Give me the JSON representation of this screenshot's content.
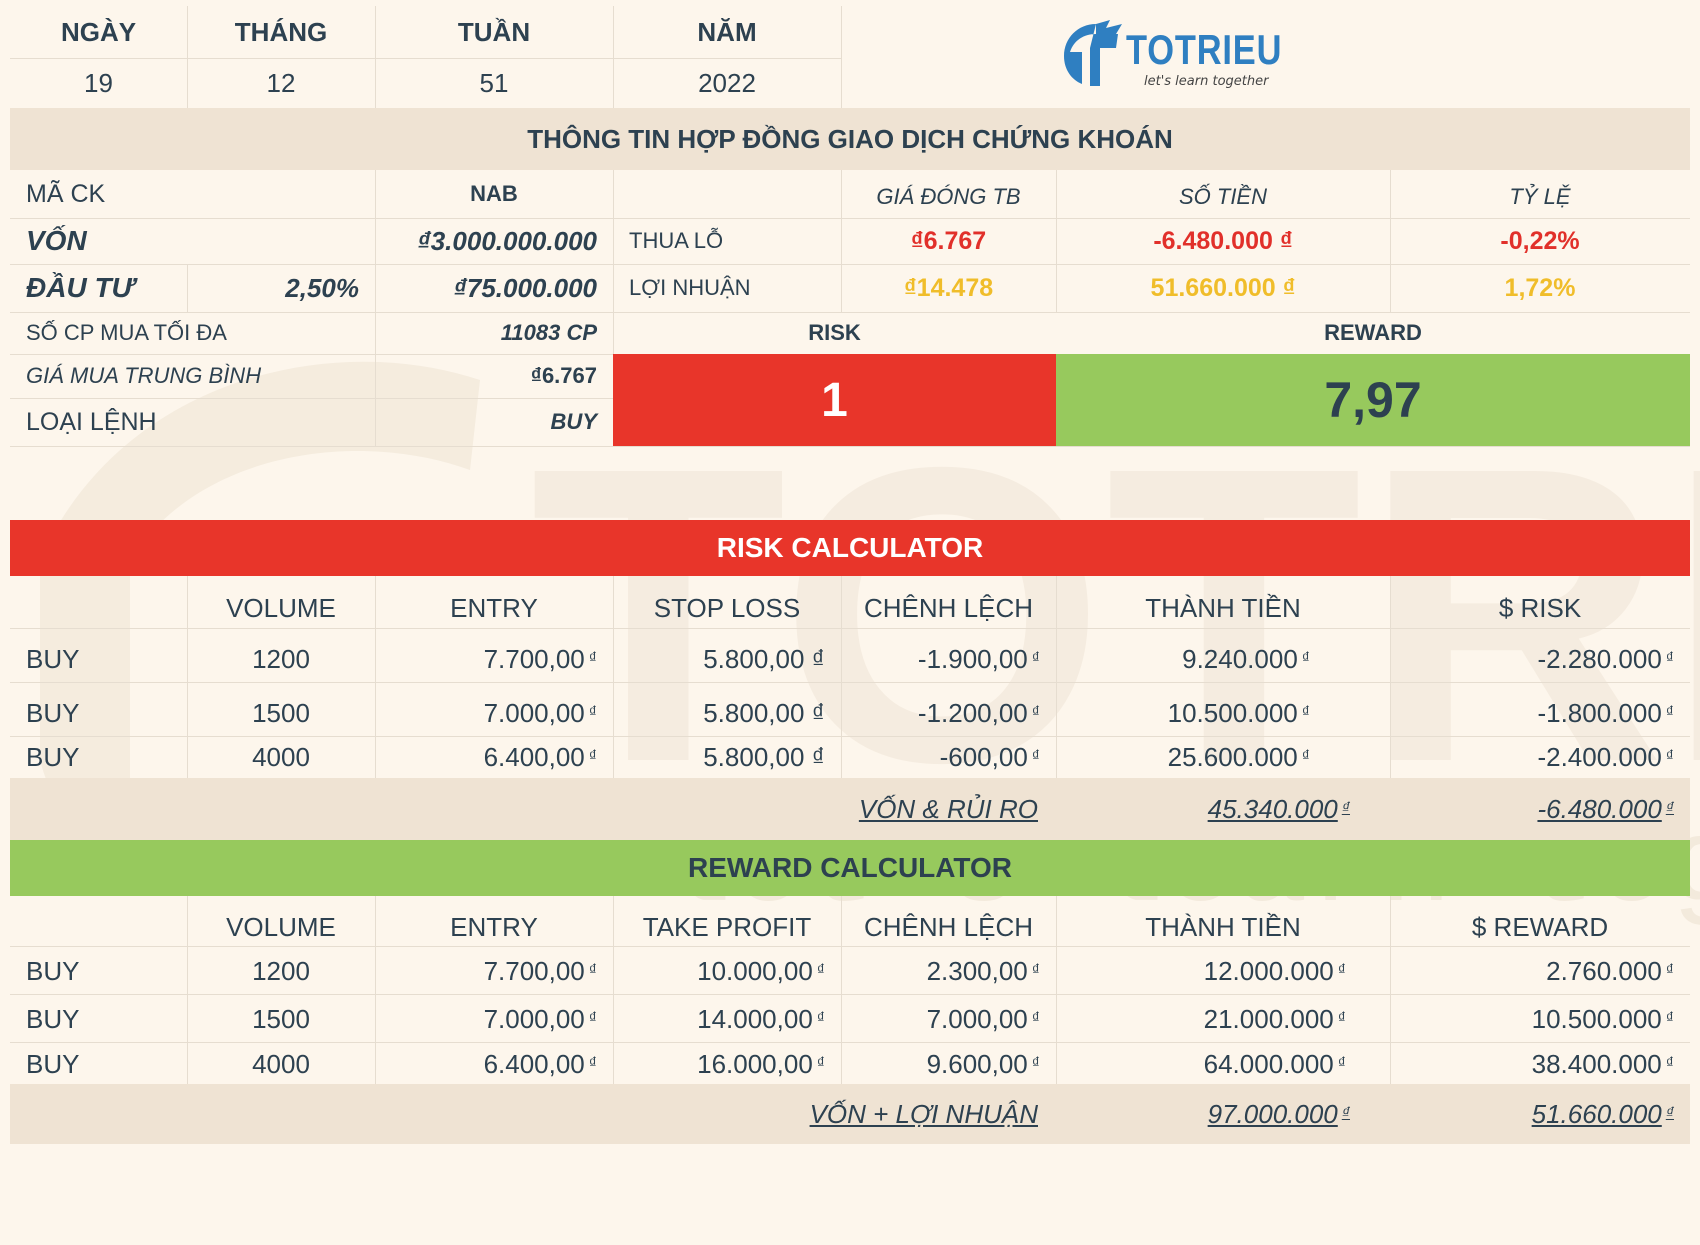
{
  "header": {
    "day_label": "NGÀY",
    "day": "19",
    "month_label": "THÁNG",
    "month": "12",
    "week_label": "TUẦN",
    "week": "51",
    "year_label": "NĂM",
    "year": "2022",
    "logo_text": "TOTRIEU",
    "logo_tagline": "let's learn together"
  },
  "contract": {
    "title": "THÔNG TIN HỢP ĐỒNG GIAO DỊCH CHỨNG KHOÁN",
    "ticker_label": "MÃ CK",
    "ticker": "NAB",
    "capital_label": "VỐN",
    "capital": "₫3.000.000.000",
    "invest_label": "ĐẦU TƯ",
    "invest_pct": "2,50%",
    "invest_amount": "₫75.000.000",
    "max_shares_label": "SỐ CP MUA TỐI ĐA",
    "max_shares": "11083 CP",
    "avg_price_label": "GIÁ MUA TRUNG BÌNH",
    "avg_price": "₫6.767",
    "order_type_label": "LOẠI LỆNH",
    "order_type": "BUY",
    "col_avg_close": "GIÁ ĐÓNG TB",
    "col_amount": "SỐ TIỀN",
    "col_ratio": "TỶ LỆ",
    "loss_label": "THUA LỖ",
    "loss_price": "₫6.767",
    "loss_amount": "-6.480.000 ₫",
    "loss_ratio": "-0,22%",
    "profit_label": "LỢI NHUẬN",
    "profit_price": "₫14.478",
    "profit_amount": "51.660.000 ₫",
    "profit_ratio": "1,72%",
    "risk_label": "RISK",
    "risk_value": "1",
    "reward_label": "REWARD",
    "reward_value": "7,97"
  },
  "risk_calc": {
    "title": "RISK CALCULATOR",
    "columns": [
      "VOLUME",
      "ENTRY",
      "STOP LOSS",
      "CHÊNH LỆCH",
      "THÀNH TIỀN",
      "$ RISK"
    ],
    "rows": [
      {
        "type": "BUY",
        "volume": "1200",
        "entry": "7.700,00",
        "stop": "5.800,00 ₫",
        "diff": "-1.900,00",
        "total": "9.240.000",
        "risk": "-2.280.000"
      },
      {
        "type": "BUY",
        "volume": "1500",
        "entry": "7.000,00",
        "stop": "5.800,00 ₫",
        "diff": "-1.200,00",
        "total": "10.500.000",
        "risk": "-1.800.000"
      },
      {
        "type": "BUY",
        "volume": "4000",
        "entry": "6.400,00",
        "stop": "5.800,00 ₫",
        "diff": "-600,00",
        "total": "25.600.000",
        "risk": "-2.400.000"
      }
    ],
    "summary_label": "VỐN & RỦI RO",
    "summary_total": "45.340.000",
    "summary_risk": "-6.480.000"
  },
  "reward_calc": {
    "title": "REWARD CALCULATOR",
    "columns": [
      "VOLUME",
      "ENTRY",
      "TAKE PROFIT",
      "CHÊNH LỆCH",
      "THÀNH TIỀN",
      "$ REWARD"
    ],
    "rows": [
      {
        "type": "BUY",
        "volume": "1200",
        "entry": "7.700,00",
        "tp": "10.000,00",
        "diff": "2.300,00",
        "total": "12.000.000",
        "reward": "2.760.000"
      },
      {
        "type": "BUY",
        "volume": "1500",
        "entry": "7.000,00",
        "tp": "14.000,00",
        "diff": "7.000,00",
        "total": "21.000.000",
        "reward": "10.500.000"
      },
      {
        "type": "BUY",
        "volume": "4000",
        "entry": "6.400,00",
        "tp": "16.000,00",
        "diff": "9.600,00",
        "total": "64.000.000",
        "reward": "38.400.000"
      }
    ],
    "summary_label": "VỐN + LỢI NHUẬN",
    "summary_total": "97.000.000",
    "summary_reward": "51.660.000"
  },
  "currency_symbol": "₫",
  "colors": {
    "background": "#fdf6ec",
    "band_beige": "#efe3d3",
    "risk_red": "#e8352a",
    "reward_green": "#97c95d",
    "text_dark": "#2d4150",
    "loss_red": "#e1302a",
    "profit_yellow": "#f0bd2a",
    "logo_blue": "#2f7fc1"
  },
  "watermark": {
    "text": "TOTRIEU",
    "tagline": "let's learn together"
  }
}
